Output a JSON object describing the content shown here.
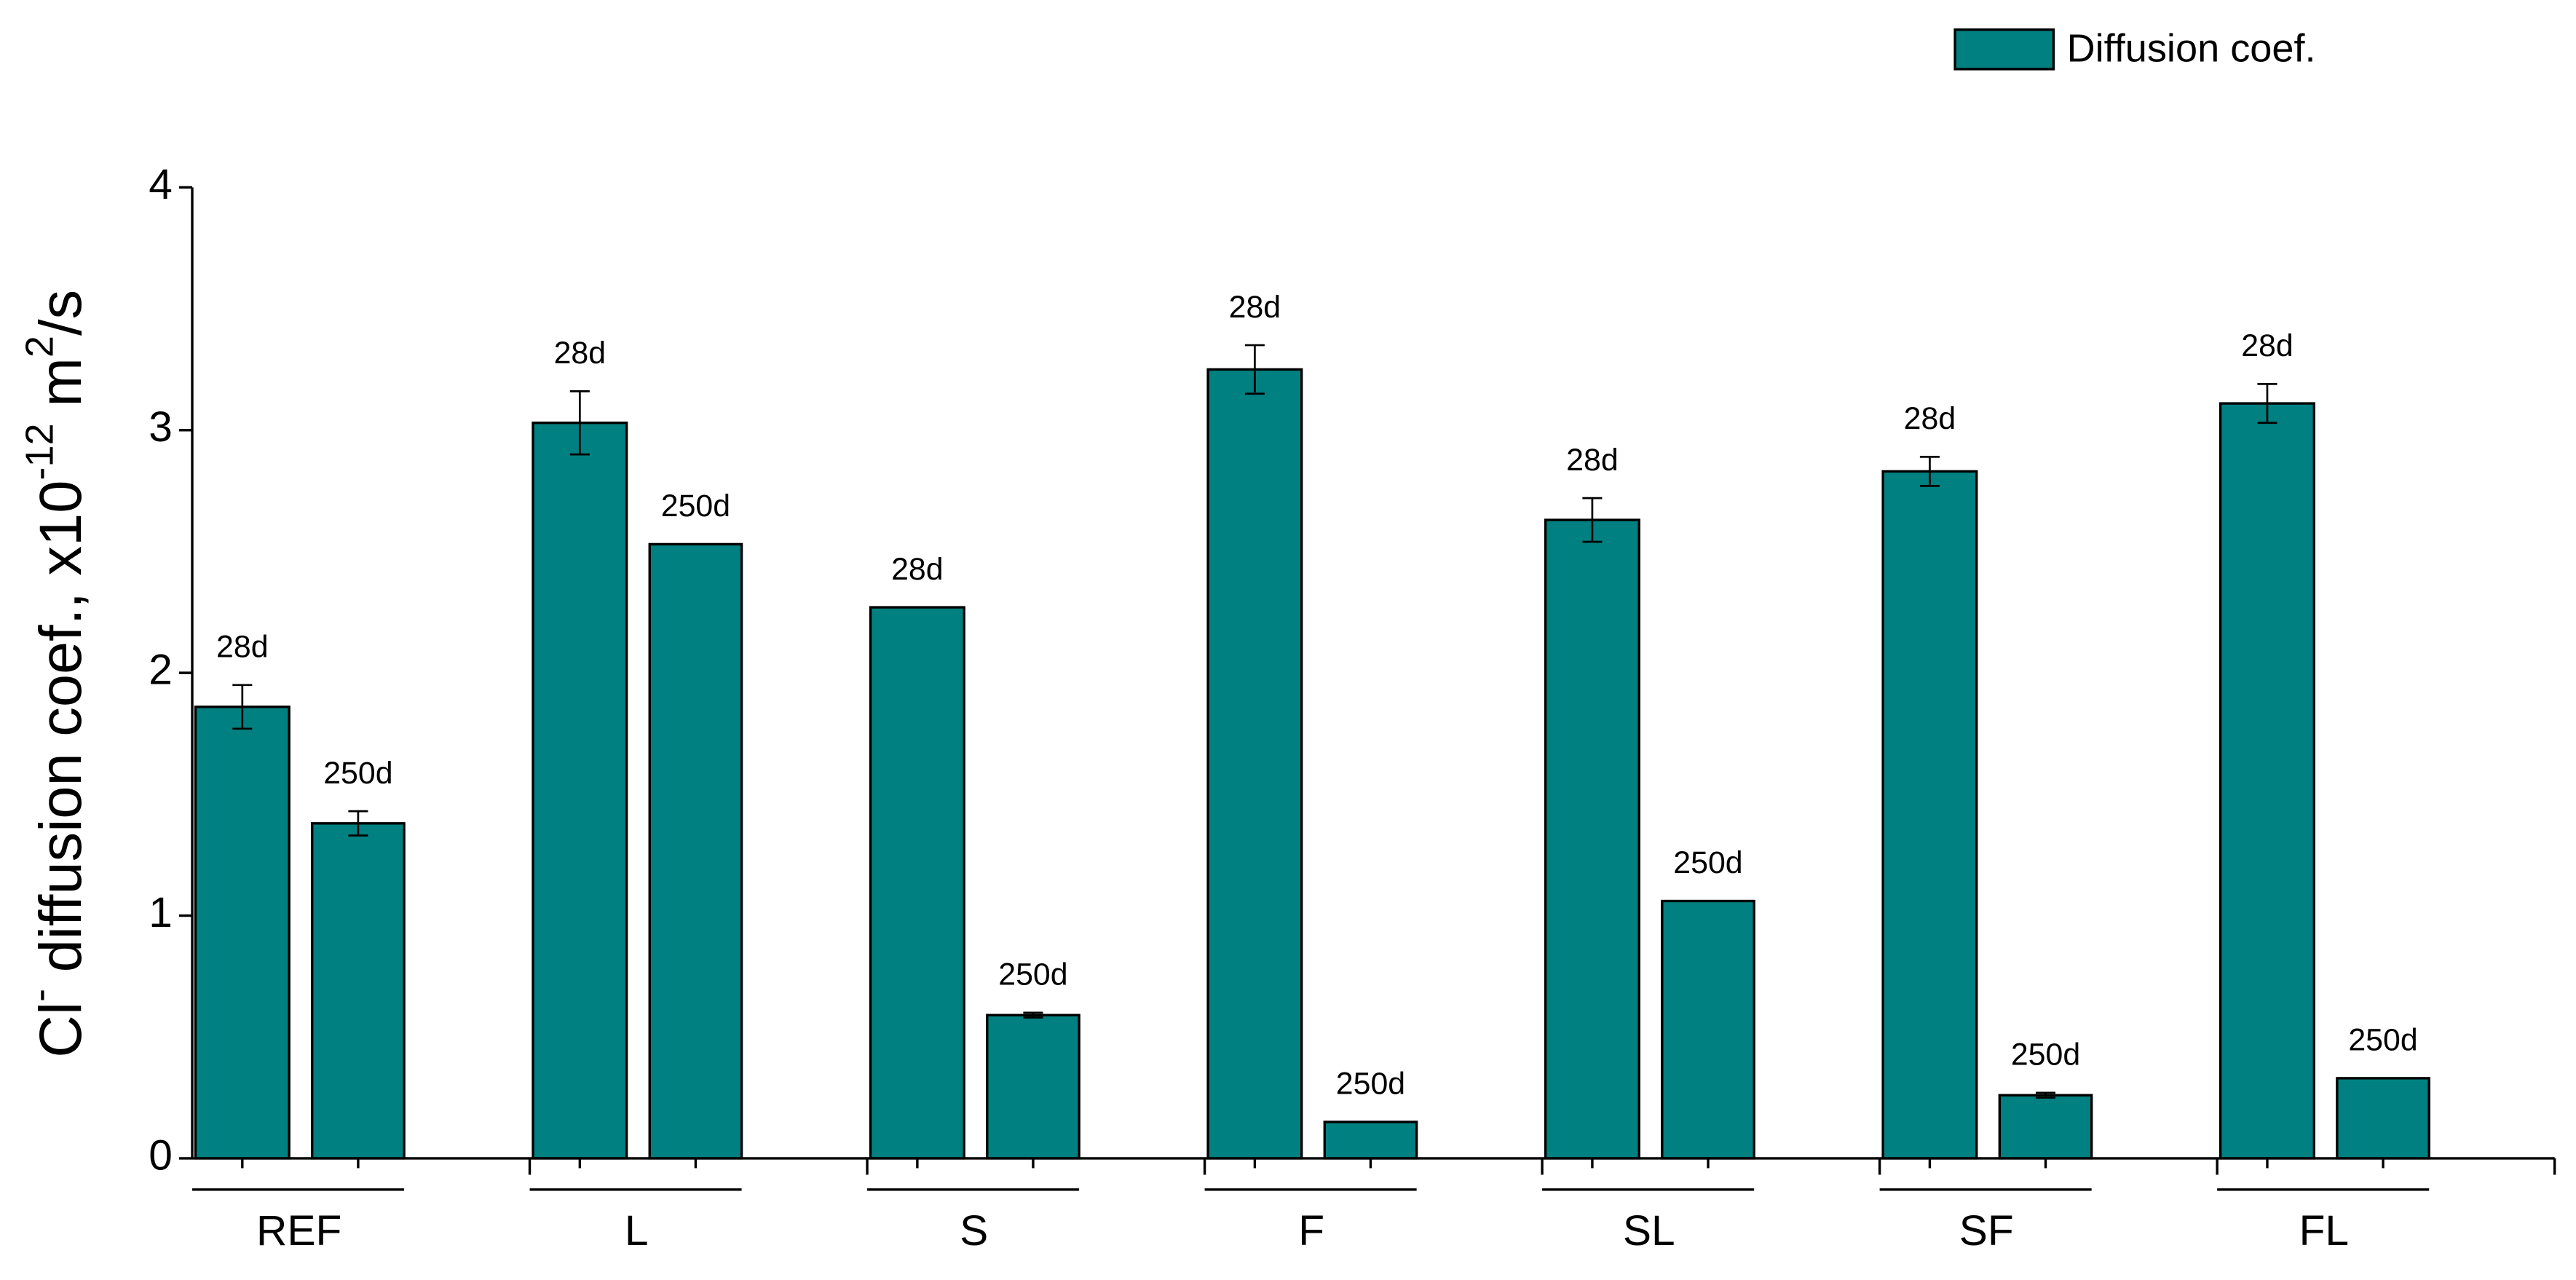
{
  "chart_data": {
    "type": "bar",
    "ylabel": [
      "Cl",
      "-",
      " diffusion coef., x10",
      "-12",
      " m",
      "2",
      "/s"
    ],
    "categories": [
      "REF",
      "L",
      "S",
      "F",
      "SL",
      "SF",
      "FL"
    ],
    "bar_labels": [
      "28d",
      "250d"
    ],
    "series": [
      {
        "name": "Diffusion coef.",
        "color": "#008080",
        "values": [
          [
            1.86,
            1.38
          ],
          [
            3.03,
            2.53
          ],
          [
            2.27,
            0.59
          ],
          [
            3.25,
            0.15
          ],
          [
            2.63,
            1.06
          ],
          [
            2.83,
            0.26
          ],
          [
            3.11,
            0.33
          ]
        ],
        "errors": [
          [
            0.09,
            0.05
          ],
          [
            0.13,
            0
          ],
          [
            0,
            0.01
          ],
          [
            0.1,
            0
          ],
          [
            0.09,
            0
          ],
          [
            0.06,
            0.01
          ],
          [
            0.08,
            0
          ]
        ]
      }
    ],
    "ylim": [
      0,
      4
    ],
    "yticks": [
      0,
      1,
      2,
      3,
      4
    ],
    "legend": "top-right"
  }
}
